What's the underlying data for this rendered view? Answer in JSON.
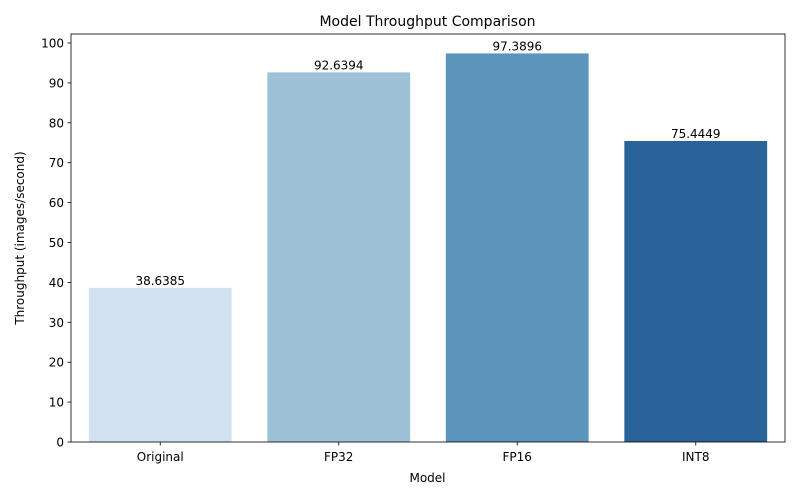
{
  "chart_data": {
    "type": "bar",
    "title": "Model Throughput Comparison",
    "xlabel": "Model",
    "ylabel": "Throughput (images/second)",
    "categories": [
      "Original",
      "FP32",
      "FP16",
      "INT8"
    ],
    "values": [
      38.6385,
      92.6394,
      97.3896,
      75.4449
    ],
    "data_labels": [
      "38.6385",
      "92.6394",
      "97.3896",
      "75.4449"
    ],
    "bar_colors": [
      "#d3e2f0",
      "#9dc2d8",
      "#5c95bb",
      "#2a6399"
    ],
    "ylim": [
      0,
      102.26
    ],
    "yticks": [
      0,
      10,
      20,
      30,
      40,
      50,
      60,
      70,
      80,
      90,
      100
    ],
    "grid": false,
    "legend": false
  }
}
